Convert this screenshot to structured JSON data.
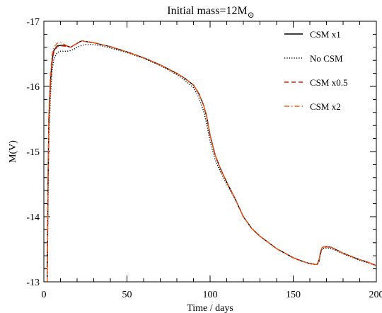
{
  "chart_data": {
    "type": "line",
    "title": "Initial mass=12M",
    "title_symbol": "⊙",
    "xlabel": "Time / days",
    "ylabel": "M(V)",
    "xlim": [
      0,
      200
    ],
    "ylim": [
      -13,
      -17
    ],
    "y_reversed": true,
    "grid": false,
    "legend_position": "top-right",
    "x_ticks": [
      0,
      50,
      100,
      150,
      200
    ],
    "x_tick_labels": [
      "0",
      "50",
      "100",
      "150",
      "200"
    ],
    "y_ticks": [
      -13,
      -14,
      -15,
      -16,
      -17
    ],
    "y_tick_labels": [
      "-13",
      "-14",
      "-15",
      "-16",
      "-17"
    ],
    "series": [
      {
        "name": "CSM x1",
        "color": "#000000",
        "dash": "solid",
        "x": [
          2.0,
          2.5,
          3.0,
          4.0,
          5.0,
          6.0,
          8.0,
          10.0,
          12.0,
          14.0,
          16.0,
          18.0,
          20.0,
          22.0,
          23.0,
          25.0,
          30.0,
          35.0,
          40.0,
          50.0,
          60.0,
          70.0,
          80.0,
          85.0,
          90.0,
          93.0,
          96.0,
          98.0,
          100.0,
          103.0,
          106.0,
          110.0,
          115.0,
          120.0,
          125.0,
          130.0,
          140.0,
          150.0,
          155.0,
          160.0,
          163.0,
          164.5,
          165.5,
          166.5,
          167.5,
          170.0,
          173.0,
          176.0,
          180.0,
          185.0,
          190.0,
          195.0,
          200.0
        ],
        "y": [
          -13.0,
          -14.5,
          -15.5,
          -16.1,
          -16.4,
          -16.55,
          -16.62,
          -16.63,
          -16.63,
          -16.62,
          -16.6,
          -16.63,
          -16.66,
          -16.69,
          -16.7,
          -16.69,
          -16.67,
          -16.64,
          -16.61,
          -16.53,
          -16.44,
          -16.33,
          -16.2,
          -16.12,
          -16.02,
          -15.9,
          -15.72,
          -15.53,
          -15.25,
          -14.95,
          -14.75,
          -14.53,
          -14.28,
          -14.0,
          -13.82,
          -13.7,
          -13.51,
          -13.37,
          -13.32,
          -13.28,
          -13.27,
          -13.27,
          -13.33,
          -13.46,
          -13.53,
          -13.54,
          -13.53,
          -13.49,
          -13.44,
          -13.39,
          -13.34,
          -13.3,
          -13.25
        ]
      },
      {
        "name": "No CSM",
        "color": "#000000",
        "dash": "dotted",
        "x": [
          2.0,
          2.5,
          3.0,
          4.0,
          5.0,
          6.0,
          8.0,
          10.0,
          12.0,
          14.0,
          16.0,
          18.0,
          20.0,
          22.0,
          23.0,
          25.0,
          30.0,
          35.0,
          40.0,
          50.0,
          60.0,
          70.0,
          80.0,
          85.0,
          90.0,
          93.0,
          96.0,
          98.0,
          100.0,
          103.0,
          106.0,
          110.0,
          115.0,
          120.0,
          125.0,
          130.0,
          140.0,
          150.0,
          155.0,
          160.0,
          163.0,
          164.5,
          165.5,
          166.5,
          167.5,
          170.0,
          173.0,
          176.0,
          180.0,
          185.0,
          190.0,
          195.0,
          200.0
        ],
        "y": [
          -13.0,
          -14.2,
          -15.2,
          -15.85,
          -16.25,
          -16.42,
          -16.52,
          -16.54,
          -16.54,
          -16.54,
          -16.55,
          -16.57,
          -16.6,
          -16.62,
          -16.63,
          -16.64,
          -16.64,
          -16.62,
          -16.59,
          -16.52,
          -16.43,
          -16.32,
          -16.18,
          -16.09,
          -15.98,
          -15.84,
          -15.63,
          -15.42,
          -15.15,
          -14.88,
          -14.7,
          -14.5,
          -14.27,
          -14.0,
          -13.82,
          -13.7,
          -13.51,
          -13.37,
          -13.32,
          -13.28,
          -13.27,
          -13.27,
          -13.31,
          -13.44,
          -13.51,
          -13.52,
          -13.51,
          -13.48,
          -13.43,
          -13.38,
          -13.33,
          -13.29,
          -13.25
        ]
      },
      {
        "name": "CSM x0.5",
        "color": "#d02000",
        "dash": "dashed",
        "x": [
          2.0,
          2.5,
          3.0,
          4.0,
          5.0,
          6.0,
          8.0,
          10.0,
          12.0,
          14.0,
          16.0,
          18.0,
          20.0,
          22.0,
          23.0,
          25.0,
          30.0,
          35.0,
          40.0,
          50.0,
          60.0,
          70.0,
          80.0,
          85.0,
          90.0,
          93.0,
          96.0,
          98.0,
          100.0,
          103.0,
          106.0,
          110.0,
          115.0,
          120.0,
          125.0,
          130.0,
          140.0,
          150.0,
          155.0,
          160.0,
          163.0,
          164.5,
          165.5,
          166.5,
          167.5,
          170.0,
          173.0,
          176.0,
          180.0,
          185.0,
          190.0,
          195.0,
          200.0
        ],
        "y": [
          -13.0,
          -14.4,
          -15.4,
          -16.05,
          -16.38,
          -16.53,
          -16.61,
          -16.62,
          -16.62,
          -16.61,
          -16.6,
          -16.63,
          -16.66,
          -16.69,
          -16.7,
          -16.69,
          -16.67,
          -16.64,
          -16.61,
          -16.53,
          -16.44,
          -16.33,
          -16.2,
          -16.12,
          -16.02,
          -15.9,
          -15.72,
          -15.53,
          -15.25,
          -14.95,
          -14.75,
          -14.53,
          -14.28,
          -14.0,
          -13.82,
          -13.7,
          -13.51,
          -13.37,
          -13.32,
          -13.28,
          -13.27,
          -13.27,
          -13.33,
          -13.46,
          -13.53,
          -13.54,
          -13.53,
          -13.49,
          -13.44,
          -13.39,
          -13.34,
          -13.3,
          -13.25
        ]
      },
      {
        "name": "CSM x2",
        "color": "#e8601a",
        "dash": "dashdot",
        "x": [
          2.0,
          2.5,
          3.0,
          4.0,
          5.0,
          6.0,
          8.0,
          10.0,
          12.0,
          14.0,
          16.0,
          18.0,
          20.0,
          22.0,
          23.0,
          25.0,
          30.0,
          35.0,
          40.0,
          50.0,
          60.0,
          70.0,
          80.0,
          85.0,
          90.0,
          93.0,
          96.0,
          98.0,
          100.0,
          103.0,
          106.0,
          110.0,
          115.0,
          120.0,
          125.0,
          130.0,
          140.0,
          150.0,
          155.0,
          160.0,
          163.0,
          164.5,
          165.5,
          166.5,
          167.5,
          170.0,
          173.0,
          176.0,
          180.0,
          185.0,
          190.0,
          195.0,
          200.0
        ],
        "y": [
          -13.0,
          -14.6,
          -15.6,
          -16.2,
          -16.5,
          -16.6,
          -16.66,
          -16.67,
          -16.65,
          -16.62,
          -16.6,
          -16.63,
          -16.66,
          -16.69,
          -16.7,
          -16.69,
          -16.67,
          -16.64,
          -16.61,
          -16.53,
          -16.44,
          -16.33,
          -16.2,
          -16.12,
          -16.02,
          -15.9,
          -15.72,
          -15.53,
          -15.25,
          -14.95,
          -14.75,
          -14.53,
          -14.28,
          -14.0,
          -13.82,
          -13.7,
          -13.51,
          -13.37,
          -13.32,
          -13.28,
          -13.27,
          -13.27,
          -13.33,
          -13.46,
          -13.53,
          -13.54,
          -13.53,
          -13.49,
          -13.44,
          -13.39,
          -13.34,
          -13.3,
          -13.25
        ]
      }
    ]
  }
}
